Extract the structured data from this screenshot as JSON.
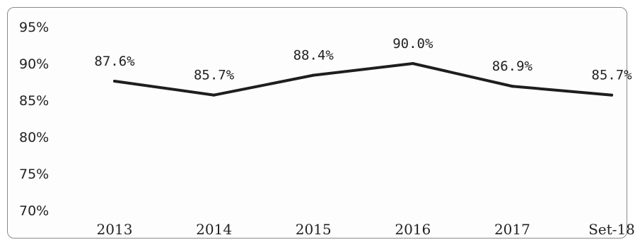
{
  "chart_data": {
    "type": "line",
    "categories": [
      "2013",
      "2014",
      "2015",
      "2016",
      "2017",
      "Set-18"
    ],
    "values": [
      87.6,
      85.7,
      88.4,
      90.0,
      86.9,
      85.7
    ],
    "data_labels": [
      "87.6%",
      "85.7%",
      "88.4%",
      "90.0%",
      "86.9%",
      "85.7%"
    ],
    "y_ticks": [
      "70%",
      "75%",
      "80%",
      "85%",
      "90%",
      "95%"
    ],
    "y_tick_values": [
      70,
      75,
      80,
      85,
      90,
      95
    ],
    "ylim": [
      70,
      95
    ],
    "title": "",
    "xlabel": "",
    "ylabel": "",
    "grid": false,
    "legend": "none",
    "line_color": "#1e1e1e"
  }
}
